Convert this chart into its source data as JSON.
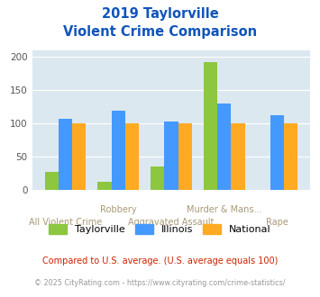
{
  "title_line1": "2019 Taylorville",
  "title_line2": "Violent Crime Comparison",
  "categories": [
    "All Violent Crime",
    "Robbery",
    "Aggravated Assault",
    "Murder & Mans...",
    "Rape"
  ],
  "taylorville": [
    28,
    13,
    36,
    193,
    0
  ],
  "illinois": [
    107,
    120,
    103,
    130,
    112
  ],
  "national": [
    100,
    100,
    100,
    100,
    100
  ],
  "colors": {
    "taylorville": "#8dc63f",
    "illinois": "#4499ff",
    "national": "#ffaa22"
  },
  "ylim": [
    0,
    210
  ],
  "yticks": [
    0,
    50,
    100,
    150,
    200
  ],
  "background_color": "#dce8f0",
  "title_color": "#1155bb",
  "xlabel_color_row1": "#aa9977",
  "xlabel_color_row2": "#aa9977",
  "footnote1": "Compared to U.S. average. (U.S. average equals 100)",
  "footnote2": "© 2025 CityRating.com - https://www.cityrating.com/crime-statistics/",
  "footnote1_color": "#cc2200",
  "footnote2_color": "#999999",
  "labels_row1": [
    "",
    "Robbery",
    "",
    "Murder & Mans...",
    ""
  ],
  "labels_row2": [
    "All Violent Crime",
    "",
    "Aggravated Assault",
    "",
    "Rape"
  ]
}
